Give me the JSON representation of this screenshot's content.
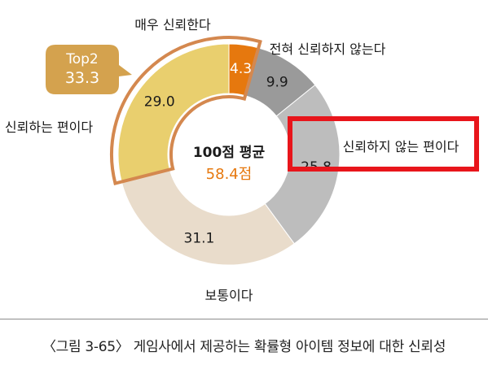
{
  "chart_data": {
    "type": "donut",
    "center": {
      "title": "100점 평균",
      "value": "58.4점"
    },
    "slices": [
      {
        "name": "매우 신뢰한다",
        "value": 4.3,
        "label": "4.3",
        "color": "#e6780e",
        "label_color": "#ffffff"
      },
      {
        "name": "전혀 신뢰하지 않는다",
        "value": 9.9,
        "label": "9.9",
        "color": "#9a9a9a",
        "label_color": "#1a1a1a"
      },
      {
        "name": "신뢰하지 않는 편이다",
        "value": 25.8,
        "label": "25.8",
        "color": "#bdbdbd",
        "label_color": "#1a1a1a"
      },
      {
        "name": "보통이다",
        "value": 31.1,
        "label": "31.1",
        "color": "#e9dccb",
        "label_color": "#1a1a1a"
      },
      {
        "name": "신뢰하는 편이다",
        "value": 29.0,
        "label": "29.0",
        "color": "#e9cf6e",
        "label_color": "#1a1a1a"
      }
    ],
    "top2": {
      "title": "Top2",
      "value": "33.3",
      "color": "#d4a24e"
    },
    "highlight": "신뢰하지 않는 편이다"
  },
  "caption": "〈그림 3-65〉 게임사에서 제공하는 확률형 아이템 정보에 대한 신뢰성",
  "colors": {
    "highlight_box": "#e8151b",
    "top2_outline": "#d4884f"
  }
}
